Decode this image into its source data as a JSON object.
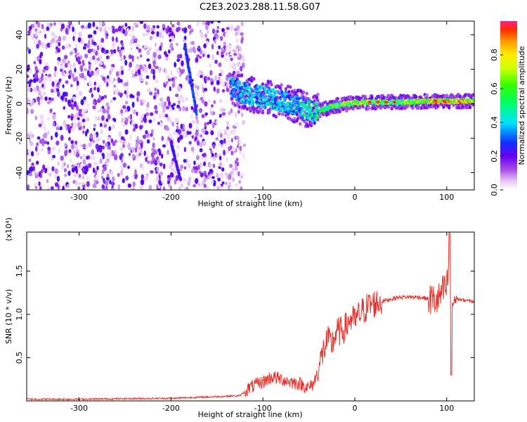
{
  "title": "C2E3.2023.288.11.58.G07",
  "chart_data": [
    {
      "type": "heatmap",
      "xlabel": "Height of straight line (km)",
      "ylabel": "Frequency (Hz)",
      "xlim": [
        -357,
        130
      ],
      "ylim": [
        -50,
        48
      ],
      "x_ticks": [
        -300,
        -200,
        -100,
        0,
        100
      ],
      "x_tick_labels": [
        "-300",
        "-200",
        "-100",
        "0",
        "100"
      ],
      "y_ticks": [
        -40,
        -20,
        0,
        20,
        40
      ],
      "y_tick_labels": [
        "-40",
        "-20",
        "0",
        "20",
        "40"
      ],
      "colorbar": {
        "label": "Normalized spectral amplitude",
        "range": [
          0,
          1
        ],
        "ticks": [
          0.0,
          0.2,
          0.4,
          0.6,
          0.8
        ],
        "tick_labels": [
          "0.0",
          "0.2",
          "0.4",
          "0.6",
          "0.8"
        ]
      },
      "signal_track": [
        {
          "x": -130,
          "freq": 8,
          "amp": 0.45
        },
        {
          "x": -110,
          "freq": 5,
          "amp": 0.45
        },
        {
          "x": -90,
          "freq": 3,
          "amp": 0.45
        },
        {
          "x": -70,
          "freq": 0,
          "amp": 0.45
        },
        {
          "x": -50,
          "freq": -4,
          "amp": 0.5
        },
        {
          "x": -40,
          "freq": -4,
          "amp": 0.55
        },
        {
          "x": -20,
          "freq": -1,
          "amp": 0.65
        },
        {
          "x": 0,
          "freq": 0.5,
          "amp": 0.8
        },
        {
          "x": 20,
          "freq": 1,
          "amp": 0.7
        },
        {
          "x": 50,
          "freq": 1,
          "amp": 0.7
        },
        {
          "x": 80,
          "freq": 1.5,
          "amp": 0.85
        },
        {
          "x": 100,
          "freq": 1.5,
          "amp": 0.9
        },
        {
          "x": 130,
          "freq": 1.5,
          "amp": 0.9
        }
      ],
      "grid": false
    },
    {
      "type": "line",
      "xlabel": "Height of straight line (km)",
      "ylabel": "SNR (10 * v/v)",
      "y_multiplier_label": "(x10⁴)",
      "xlim": [
        -357,
        130
      ],
      "ylim": [
        0,
        1.95
      ],
      "x_ticks": [
        -300,
        -200,
        -100,
        0,
        100
      ],
      "x_tick_labels": [
        "-300",
        "-200",
        "-100",
        "0",
        "100"
      ],
      "y_ticks": [
        0.5,
        1.0,
        1.5
      ],
      "y_tick_labels": [
        "0.5",
        "1.0",
        "1.5"
      ],
      "series": [
        {
          "color": "#e8302a",
          "x": [
            -357,
            -300,
            -250,
            -200,
            -150,
            -125,
            -115,
            -100,
            -90,
            -80,
            -70,
            -60,
            -50,
            -45,
            -40,
            -35,
            -30,
            -25,
            -20,
            -15,
            -10,
            -5,
            0,
            5,
            10,
            15,
            20,
            30,
            40,
            50,
            60,
            70,
            80,
            90,
            95,
            100,
            103,
            105,
            110,
            115,
            120,
            130
          ],
          "y": [
            0.02,
            0.02,
            0.025,
            0.03,
            0.05,
            0.06,
            0.15,
            0.22,
            0.28,
            0.25,
            0.22,
            0.2,
            0.15,
            0.2,
            0.35,
            0.55,
            0.7,
            0.65,
            0.8,
            0.8,
            0.85,
            0.95,
            0.92,
            1.0,
            1.05,
            1.1,
            1.12,
            1.15,
            1.18,
            1.2,
            1.2,
            1.2,
            1.18,
            1.15,
            1.25,
            1.3,
            1.6,
            1.15,
            1.18,
            1.17,
            1.16,
            1.15
          ]
        }
      ],
      "grid": false
    }
  ]
}
